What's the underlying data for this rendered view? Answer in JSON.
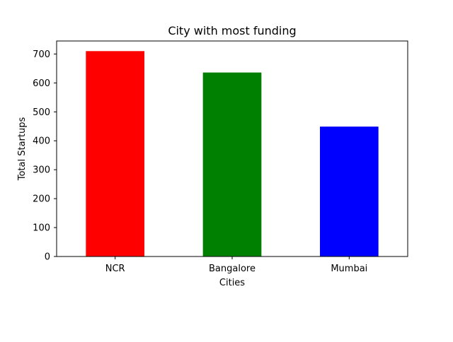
{
  "chart_data": {
    "type": "bar",
    "title": "City with most funding",
    "xlabel": "Cities",
    "ylabel": "Total Startups",
    "categories": [
      "NCR",
      "Bangalore",
      "Mumbai"
    ],
    "values": [
      710,
      636,
      449
    ],
    "colors": [
      "#ff0000",
      "#008000",
      "#0000ff"
    ],
    "ylim": [
      0,
      745
    ],
    "yticks": [
      0,
      100,
      200,
      300,
      400,
      500,
      600,
      700
    ],
    "grid": false,
    "legend": "none"
  }
}
